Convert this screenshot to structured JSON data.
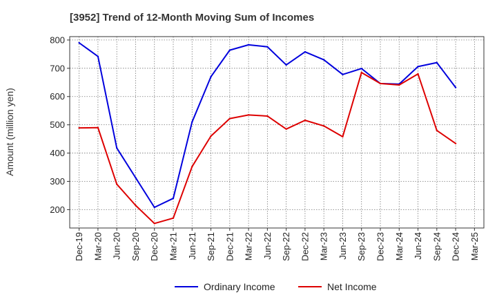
{
  "chart_data": {
    "type": "line",
    "title": "[3952]  Trend of 12-Month Moving Sum of Incomes",
    "ylabel": "Amount (million yen)",
    "xlabel": "",
    "ylim": [
      135,
      812
    ],
    "yticks": [
      200,
      300,
      400,
      500,
      600,
      700,
      800
    ],
    "categories": [
      "Dec-19",
      "Mar-20",
      "Jun-20",
      "Sep-20",
      "Dec-20",
      "Mar-21",
      "Jun-21",
      "Sep-21",
      "Dec-21",
      "Mar-22",
      "Jun-22",
      "Sep-22",
      "Dec-22",
      "Mar-23",
      "Jun-23",
      "Sep-23",
      "Dec-23",
      "Mar-24",
      "Jun-24",
      "Sep-24",
      "Dec-24",
      "Mar-25"
    ],
    "grid": true,
    "legend_position": "bottom-center",
    "series": [
      {
        "name": "Ordinary Income",
        "color": "#0000dd",
        "values": [
          790,
          742,
          418,
          313,
          208,
          240,
          510,
          670,
          764,
          783,
          776,
          712,
          758,
          730,
          678,
          699,
          646,
          644,
          706,
          720,
          632,
          null
        ]
      },
      {
        "name": "Net Income",
        "color": "#dd0000",
        "values": [
          489,
          490,
          290,
          215,
          151,
          170,
          352,
          460,
          522,
          535,
          531,
          485,
          516,
          496,
          458,
          685,
          646,
          641,
          680,
          480,
          434,
          null
        ]
      }
    ]
  }
}
